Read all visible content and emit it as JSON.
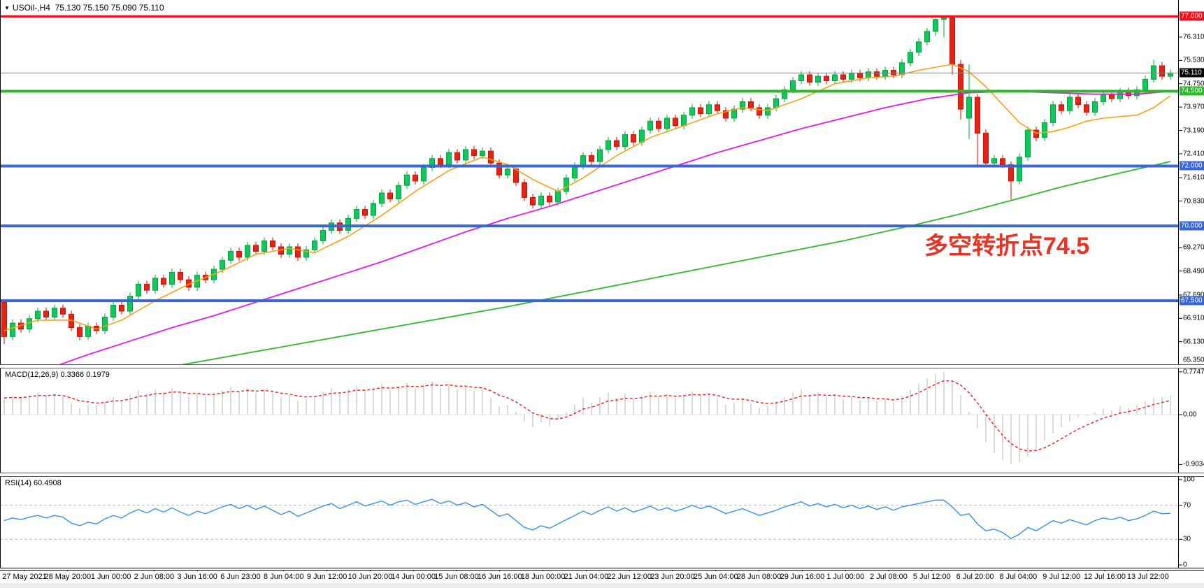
{
  "window": {
    "title": {
      "dropdown_icon": "▼",
      "symbol": "USOil-,H4",
      "quotes": "75.130 75.150 75.090 75.110"
    }
  },
  "annotation": {
    "text": "多空转折点74.5",
    "color": "#e83223"
  },
  "colors": {
    "bull_fill": "#0bc95b",
    "bull_stroke": "#05a33f",
    "bear_fill": "#ea2213",
    "bear_stroke": "#c21507",
    "plot_border": "#000000",
    "axis_text": "#000000",
    "background": "#ffffff"
  },
  "chart_data": {
    "type": "candlestick",
    "symbol": "USOil-",
    "timeframe": "H4",
    "title": "USOil-,H4 75.130 75.150 75.090 75.110",
    "ohlc_quote": {
      "open": "75.130",
      "high": "75.150",
      "low": "75.090",
      "close": "75.110"
    },
    "price_axis": {
      "ticks": [
        76.31,
        75.53,
        74.75,
        73.97,
        73.19,
        72.41,
        71.61,
        70.83,
        69.27,
        68.49,
        67.69,
        66.91,
        66.13,
        65.35
      ],
      "badges": [
        {
          "label": "77.000",
          "price": 77.0,
          "bg": "#f70d1a"
        },
        {
          "label": "75.110",
          "price": 75.11,
          "bg": "#000000"
        },
        {
          "label": "74.500",
          "price": 74.5,
          "bg": "#2eb82e"
        },
        {
          "label": "72.000",
          "price": 72.0,
          "bg": "#3a66d4"
        },
        {
          "label": "70.000",
          "price": 70.0,
          "bg": "#3a66d4"
        },
        {
          "label": "67.500",
          "price": 67.5,
          "bg": "#3a66d4"
        }
      ]
    },
    "hlines": [
      {
        "price": 77.0,
        "color": "#f70d1a",
        "width": 3
      },
      {
        "price": 74.5,
        "color": "#2eb82e",
        "width": 4
      },
      {
        "price": 72.0,
        "color": "#3a66d4",
        "width": 4
      },
      {
        "price": 70.0,
        "color": "#3a66d4",
        "width": 4
      },
      {
        "price": 67.5,
        "color": "#3a66d4",
        "width": 4
      }
    ],
    "bid_line": {
      "price": 75.11,
      "color": "#808080"
    },
    "candles": {
      "first_open": 67.45,
      "default_wick": 0.12,
      "closes": [
        66.3,
        66.75,
        66.55,
        66.9,
        67.15,
        66.95,
        67.25,
        67.05,
        66.6,
        66.3,
        66.65,
        66.5,
        66.95,
        67.35,
        67.15,
        67.65,
        68.05,
        67.85,
        68.25,
        68.05,
        68.45,
        68.2,
        67.95,
        68.35,
        68.2,
        68.55,
        68.85,
        69.15,
        68.95,
        69.35,
        69.15,
        69.5,
        69.3,
        69.05,
        69.3,
        68.95,
        69.2,
        69.5,
        69.85,
        70.1,
        69.85,
        70.25,
        70.55,
        70.35,
        70.75,
        71.1,
        70.9,
        71.35,
        71.7,
        71.5,
        71.95,
        72.25,
        72.05,
        72.45,
        72.2,
        72.55,
        72.35,
        72.5,
        72.1,
        71.7,
        71.9,
        71.45,
        70.95,
        70.7,
        71.0,
        70.8,
        71.15,
        71.6,
        72.0,
        72.35,
        72.15,
        72.55,
        72.85,
        72.65,
        73.05,
        72.8,
        73.2,
        73.5,
        73.25,
        73.6,
        73.35,
        73.7,
        73.95,
        73.75,
        74.05,
        73.85,
        73.6,
        73.9,
        74.15,
        73.95,
        73.7,
        73.95,
        74.25,
        74.55,
        74.85,
        75.05,
        74.8,
        75.0,
        74.85,
        75.05,
        74.9,
        75.1,
        74.95,
        75.15,
        75.0,
        75.2,
        75.05,
        75.45,
        75.8,
        76.15,
        76.5,
        76.9,
        76.95,
        75.4,
        73.9,
        74.3,
        73.1,
        72.1,
        72.25,
        72.05,
        71.5,
        72.3,
        73.2,
        72.95,
        73.45,
        74.05,
        73.85,
        74.3,
        74.05,
        73.8,
        74.15,
        74.4,
        74.25,
        74.5,
        74.35,
        74.55,
        74.9,
        75.35,
        75.0,
        75.11
      ],
      "overrides": {
        "0": [
          67.45,
          67.55,
          66.05,
          66.3
        ],
        "111": [
          76.5,
          76.95,
          76.35,
          76.9
        ],
        "112": [
          76.9,
          77.0,
          76.3,
          76.95
        ],
        "113": [
          76.95,
          76.98,
          75.05,
          75.4
        ],
        "114": [
          75.4,
          75.55,
          73.55,
          73.9
        ],
        "115": [
          73.6,
          75.4,
          72.9,
          74.3
        ],
        "116": [
          74.3,
          74.4,
          71.95,
          73.1
        ],
        "120": [
          72.05,
          72.15,
          70.88,
          71.5
        ],
        "137": [
          74.9,
          75.55,
          74.8,
          75.35
        ]
      }
    },
    "moving_averages": [
      {
        "name": "ma-fast-orange",
        "color": "#f7a115",
        "width": 1.6,
        "points": [
          [
            0,
            66.5
          ],
          [
            4,
            66.85
          ],
          [
            8,
            66.85
          ],
          [
            11,
            66.55
          ],
          [
            14,
            66.85
          ],
          [
            18,
            67.5
          ],
          [
            22,
            68.05
          ],
          [
            26,
            68.5
          ],
          [
            30,
            69.05
          ],
          [
            34,
            69.25
          ],
          [
            37,
            69.1
          ],
          [
            41,
            69.65
          ],
          [
            45,
            70.35
          ],
          [
            49,
            71.15
          ],
          [
            53,
            71.85
          ],
          [
            57,
            72.3
          ],
          [
            60,
            72.05
          ],
          [
            63,
            71.55
          ],
          [
            66,
            71.15
          ],
          [
            69,
            71.6
          ],
          [
            73,
            72.35
          ],
          [
            77,
            72.95
          ],
          [
            81,
            73.35
          ],
          [
            85,
            73.75
          ],
          [
            88,
            73.95
          ],
          [
            91,
            73.85
          ],
          [
            95,
            74.25
          ],
          [
            99,
            74.75
          ],
          [
            103,
            74.95
          ],
          [
            106,
            75.0
          ],
          [
            109,
            75.2
          ],
          [
            111,
            75.3
          ],
          [
            113,
            75.4
          ],
          [
            115,
            75.15
          ],
          [
            117,
            74.65
          ],
          [
            119,
            74.05
          ],
          [
            121,
            73.45
          ],
          [
            123,
            73.1
          ],
          [
            125,
            73.15
          ],
          [
            127,
            73.3
          ],
          [
            129,
            73.5
          ],
          [
            131,
            73.6
          ],
          [
            133,
            73.65
          ],
          [
            135,
            73.7
          ],
          [
            137,
            73.95
          ],
          [
            139,
            74.35
          ]
        ]
      },
      {
        "name": "ma-mid-magenta",
        "color": "#e619e6",
        "width": 1.8,
        "points": [
          [
            6,
            65.3
          ],
          [
            10,
            65.7
          ],
          [
            15,
            66.15
          ],
          [
            20,
            66.6
          ],
          [
            25,
            67.0
          ],
          [
            30,
            67.45
          ],
          [
            35,
            67.9
          ],
          [
            40,
            68.35
          ],
          [
            45,
            68.8
          ],
          [
            50,
            69.3
          ],
          [
            55,
            69.8
          ],
          [
            60,
            70.25
          ],
          [
            65,
            70.65
          ],
          [
            70,
            71.1
          ],
          [
            75,
            71.55
          ],
          [
            80,
            72.0
          ],
          [
            85,
            72.45
          ],
          [
            90,
            72.85
          ],
          [
            95,
            73.25
          ],
          [
            100,
            73.6
          ],
          [
            105,
            73.95
          ],
          [
            110,
            74.25
          ],
          [
            115,
            74.45
          ],
          [
            120,
            74.5
          ],
          [
            125,
            74.45
          ],
          [
            130,
            74.4
          ],
          [
            135,
            74.4
          ],
          [
            139,
            74.5
          ]
        ]
      },
      {
        "name": "ma-slow-green",
        "color": "#2db92d",
        "width": 1.8,
        "points": [
          [
            20,
            65.3
          ],
          [
            30,
            65.8
          ],
          [
            40,
            66.3
          ],
          [
            50,
            66.8
          ],
          [
            60,
            67.3
          ],
          [
            70,
            67.85
          ],
          [
            80,
            68.4
          ],
          [
            90,
            68.95
          ],
          [
            100,
            69.5
          ],
          [
            108,
            70.0
          ],
          [
            114,
            70.4
          ],
          [
            120,
            70.85
          ],
          [
            126,
            71.3
          ],
          [
            132,
            71.7
          ],
          [
            139,
            72.15
          ]
        ]
      }
    ],
    "macd": {
      "label": "MACD(12,26,9) 0.3366 0.1979",
      "main_value": 0.3366,
      "signal_value": 0.1979,
      "histogram_color": "#c9c9c9",
      "signal_color": "#e02020",
      "signal_period": 6,
      "axis": [
        {
          "v": 0.7747,
          "label": "0.7747"
        },
        {
          "v": 0,
          "label": "0.00"
        },
        {
          "v": -0.9034,
          "label": "-0.9034"
        }
      ],
      "values": [
        0.3,
        0.34,
        0.3,
        0.36,
        0.4,
        0.34,
        0.38,
        0.32,
        0.2,
        0.12,
        0.18,
        0.16,
        0.24,
        0.32,
        0.26,
        0.36,
        0.44,
        0.38,
        0.46,
        0.4,
        0.48,
        0.4,
        0.32,
        0.38,
        0.32,
        0.38,
        0.44,
        0.5,
        0.42,
        0.48,
        0.4,
        0.46,
        0.38,
        0.3,
        0.34,
        0.24,
        0.28,
        0.34,
        0.42,
        0.48,
        0.4,
        0.46,
        0.52,
        0.44,
        0.5,
        0.56,
        0.46,
        0.52,
        0.58,
        0.48,
        0.54,
        0.6,
        0.5,
        0.56,
        0.46,
        0.52,
        0.44,
        0.46,
        0.3,
        0.15,
        0.18,
        0.05,
        -0.12,
        -0.22,
        -0.15,
        -0.2,
        -0.1,
        0.05,
        0.18,
        0.3,
        0.22,
        0.32,
        0.4,
        0.3,
        0.38,
        0.28,
        0.34,
        0.42,
        0.32,
        0.38,
        0.3,
        0.36,
        0.42,
        0.34,
        0.4,
        0.3,
        0.18,
        0.22,
        0.28,
        0.2,
        0.12,
        0.16,
        0.24,
        0.32,
        0.4,
        0.46,
        0.36,
        0.4,
        0.32,
        0.36,
        0.28,
        0.32,
        0.26,
        0.3,
        0.24,
        0.28,
        0.22,
        0.34,
        0.45,
        0.56,
        0.66,
        0.74,
        0.77,
        0.6,
        0.35,
        0.05,
        -0.25,
        -0.5,
        -0.7,
        -0.82,
        -0.9,
        -0.86,
        -0.76,
        -0.62,
        -0.48,
        -0.34,
        -0.22,
        -0.12,
        -0.05,
        -0.02,
        0.04,
        0.1,
        0.08,
        0.15,
        0.12,
        0.18,
        0.24,
        0.3,
        0.32,
        0.34
      ]
    },
    "rsi": {
      "label": "RSI(14) 60.4908",
      "current_value": 60.4908,
      "line_color": "#3a8fe0",
      "level_color": "#b8b8b8",
      "levels": [
        70,
        30
      ],
      "axis": [
        {
          "v": 100,
          "label": "100"
        },
        {
          "v": 70,
          "label": "70"
        },
        {
          "v": 30,
          "label": "30"
        },
        {
          "v": 0,
          "label": "0"
        }
      ],
      "values": [
        52,
        55,
        53,
        56,
        58,
        55,
        58,
        56,
        49,
        46,
        50,
        48,
        54,
        58,
        55,
        61,
        65,
        61,
        66,
        62,
        67,
        62,
        58,
        63,
        60,
        64,
        68,
        71,
        66,
        70,
        65,
        69,
        64,
        59,
        63,
        57,
        61,
        65,
        69,
        72,
        66,
        70,
        74,
        69,
        72,
        75,
        70,
        74,
        76,
        71,
        74,
        77,
        72,
        75,
        70,
        73,
        68,
        71,
        64,
        57,
        60,
        52,
        44,
        41,
        46,
        43,
        48,
        53,
        58,
        63,
        59,
        64,
        68,
        63,
        67,
        62,
        65,
        69,
        64,
        67,
        63,
        66,
        70,
        66,
        69,
        65,
        60,
        63,
        66,
        62,
        58,
        61,
        64,
        68,
        71,
        74,
        69,
        72,
        68,
        71,
        67,
        70,
        66,
        69,
        65,
        68,
        64,
        68,
        70,
        72,
        74,
        76,
        76,
        68,
        58,
        60,
        48,
        40,
        42,
        38,
        31,
        36,
        44,
        40,
        46,
        52,
        49,
        53,
        50,
        47,
        52,
        55,
        53,
        56,
        52,
        54,
        58,
        63,
        60,
        60.5
      ]
    },
    "time_labels": [
      "27 May 2021",
      "28 May 20:00",
      "1 Jun 00:00",
      "2 Jun 08:00",
      "3 Jun 16:00",
      "6 Jun 23:00",
      "8 Jun 04:00",
      "9 Jun 12:00",
      "10 Jun 20:00",
      "14 Jun 00:00",
      "15 Jun 08:00",
      "16 Jun 16:00",
      "18 Jun 00:00",
      "21 Jun 04:00",
      "22 Jun 12:00",
      "23 Jun 20:00",
      "25 Jun 04:00",
      "28 Jun 08:00",
      "29 Jun 16:00",
      "1 Jul 00:00",
      "2 Jul 08:00",
      "5 Jul 12:00",
      "6 Jul 20:00",
      "8 Jul 04:00",
      "9 Jul 12:00",
      "12 Jul 16:00",
      "13 Jul 22:00"
    ]
  }
}
